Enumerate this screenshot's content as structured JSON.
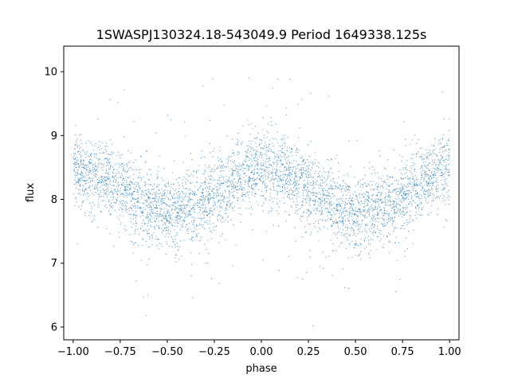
{
  "chart_data": {
    "type": "scatter",
    "title": "1SWASPJ130324.18-543049.9 Period 1649338.125s",
    "xlabel": "phase",
    "ylabel": "flux",
    "xlim": [
      -1.05,
      1.05
    ],
    "ylim": [
      5.8,
      10.4
    ],
    "xticks": [
      -1.0,
      -0.75,
      -0.5,
      -0.25,
      0.0,
      0.25,
      0.5,
      0.75,
      1.0
    ],
    "xtick_labels": [
      "−1.00",
      "−0.75",
      "−0.50",
      "−0.25",
      "0.00",
      "0.25",
      "0.50",
      "0.75",
      "1.00"
    ],
    "yticks": [
      6,
      7,
      8,
      9,
      10
    ],
    "ytick_labels": [
      "6",
      "7",
      "8",
      "9",
      "10"
    ],
    "grid": false,
    "marker_color": "#1f77b4",
    "series": [
      {
        "curve_x": [
          -1.0,
          -0.9,
          -0.8,
          -0.7,
          -0.6,
          -0.5,
          -0.4,
          -0.3,
          -0.2,
          -0.1,
          0.0,
          0.1,
          0.2,
          0.3,
          0.4,
          0.5,
          0.6,
          0.7,
          0.8,
          0.9,
          1.0
        ],
        "curve_y": [
          8.5,
          8.4,
          8.3,
          8.1,
          7.9,
          7.8,
          7.85,
          7.95,
          8.15,
          8.35,
          8.5,
          8.45,
          8.3,
          8.05,
          7.85,
          7.75,
          7.85,
          7.95,
          8.15,
          8.35,
          8.5
        ],
        "scatter_sigma": 0.28,
        "x_range": [
          -1.0,
          1.0
        ],
        "y_range": [
          6.0,
          10.2
        ]
      }
    ]
  }
}
